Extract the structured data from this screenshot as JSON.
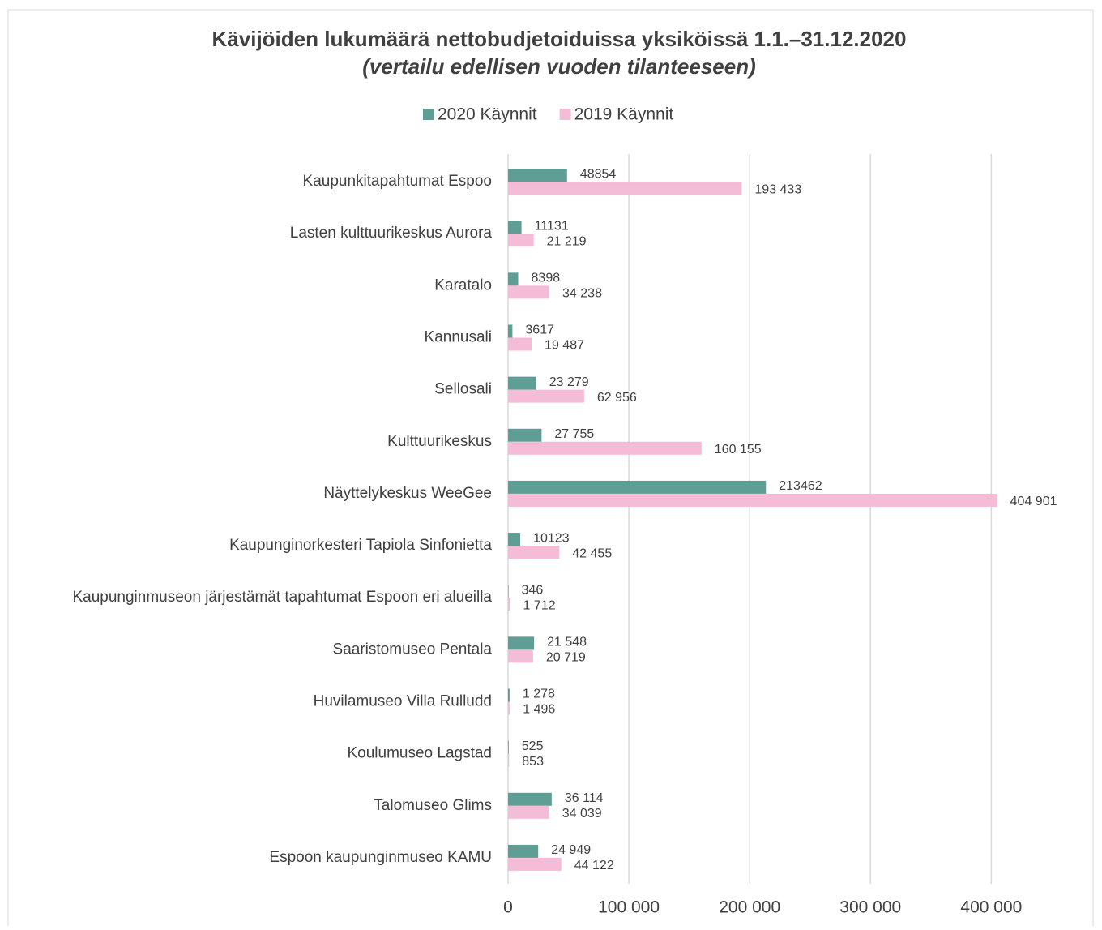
{
  "chart_data": {
    "type": "hbar",
    "title": "Kävijöiden lukumäärä nettobudjetoiduissa yksiköissä 1.1.–31.12.2020",
    "subtitle": "(vertailu edellisen vuoden tilanteeseen)",
    "categories": [
      "Kaupunkitapahtumat Espoo",
      "Lasten kulttuurikeskus Aurora",
      "Karatalo",
      "Kannusali",
      "Sellosali",
      "Kulttuurikeskus",
      "Näyttelykeskus WeeGee",
      "Kaupunginorkesteri Tapiola Sinfonietta",
      "Kaupunginmuseon järjestämät tapahtumat Espoon eri alueilla",
      "Saaristomuseo Pentala",
      "Huvilamuseo Villa Rulludd",
      "Koulumuseo Lagstad",
      "Talomuseo Glims",
      "Espoon kaupunginmuseo KAMU"
    ],
    "series": [
      {
        "name": "2020 Käynnit",
        "color": "#5f9e94",
        "values": [
          48854,
          11131,
          8398,
          3617,
          23279,
          27755,
          213462,
          10123,
          346,
          21548,
          1278,
          525,
          36114,
          24949
        ],
        "value_labels": [
          "48854",
          "11131",
          "8398",
          "3617",
          "23 279",
          "27 755",
          "213462",
          "10123",
          "346",
          "21 548",
          "1 278",
          "525",
          "36 114",
          "24 949"
        ]
      },
      {
        "name": "2019 Käynnit",
        "color": "#f4bcd6",
        "values": [
          193433,
          21219,
          34238,
          19487,
          62956,
          160155,
          404901,
          42455,
          1712,
          20719,
          1496,
          853,
          34039,
          44122
        ],
        "value_labels": [
          "193 433",
          "21 219",
          "34 238",
          "19 487",
          "62 956",
          "160 155",
          "404 901",
          "42 455",
          "1 712",
          "20 719",
          "1 496",
          "853",
          "34 039",
          "44 122"
        ]
      }
    ],
    "xlim": [
      0,
      440000
    ],
    "xticks": [
      0,
      {
        "value": 100000,
        "label": "100 000"
      },
      {
        "value": 200000,
        "label": "200 000"
      },
      {
        "value": 300000,
        "label": "300 000"
      },
      {
        "value": 400000,
        "label": "400 000"
      }
    ],
    "grid": true,
    "legend": "top"
  }
}
